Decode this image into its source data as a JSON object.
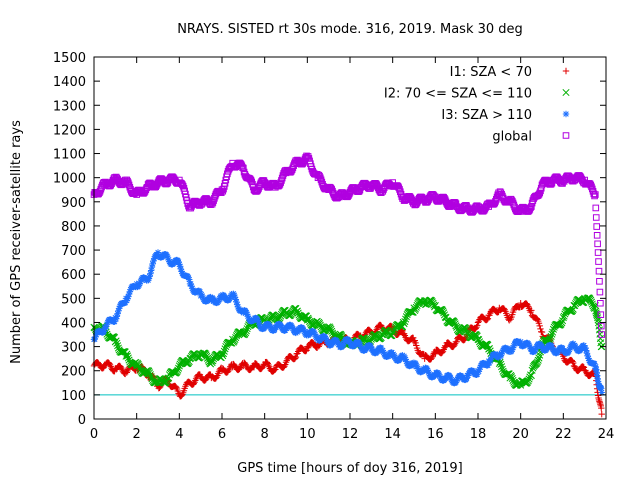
{
  "chart_data": {
    "type": "scatter",
    "title": "NRAYS. SISTED rt 30s mode. 316, 2019. Mask 30 deg",
    "xlabel": "GPS time [hours of doy 316, 2019]",
    "ylabel": "Number of GPS receiver-satellite rays",
    "xlim": [
      0,
      24
    ],
    "ylim": [
      0,
      1500
    ],
    "x_ticks": [
      "0",
      "2",
      "4",
      "6",
      "8",
      "10",
      "12",
      "14",
      "16",
      "18",
      "20",
      "22",
      "24"
    ],
    "y_ticks": [
      "0",
      "100",
      "200",
      "300",
      "400",
      "500",
      "600",
      "700",
      "800",
      "900",
      "1000",
      "1100",
      "1200",
      "1300",
      "1400",
      "1500"
    ],
    "grid": false,
    "legend_position": "top-right",
    "reference_line": {
      "y": 100,
      "color": "#00c0c0"
    },
    "series": [
      {
        "name": "I1: SZA < 70",
        "color": "#e00000",
        "marker": "plus",
        "x": [
          0,
          0.5,
          1,
          1.5,
          2,
          2.5,
          3,
          3.5,
          4,
          4.5,
          5,
          5.5,
          6,
          6.5,
          7,
          7.5,
          8,
          8.5,
          9,
          9.5,
          10,
          10.5,
          11,
          11.5,
          12,
          12.5,
          13,
          13.5,
          14,
          14.5,
          15,
          15.5,
          16,
          16.5,
          17,
          17.5,
          18,
          18.5,
          19,
          19.5,
          20,
          20.5,
          21,
          21.5,
          22,
          22.5,
          23,
          23.5,
          23.8
        ],
        "y": [
          220,
          225,
          210,
          200,
          215,
          190,
          140,
          160,
          100,
          150,
          175,
          170,
          200,
          215,
          220,
          215,
          225,
          205,
          235,
          270,
          300,
          310,
          320,
          325,
          325,
          345,
          360,
          380,
          370,
          350,
          320,
          250,
          270,
          300,
          320,
          350,
          400,
          430,
          460,
          420,
          480,
          450,
          360,
          300,
          260,
          220,
          200,
          180,
          20
        ]
      },
      {
        "name": "I2: 70 <= SZA <= 110",
        "color": "#00b000",
        "marker": "x",
        "x": [
          0,
          0.5,
          1,
          1.5,
          2,
          2.5,
          3,
          3.5,
          4,
          4.5,
          5,
          5.5,
          6,
          6.5,
          7,
          7.5,
          8,
          8.5,
          9,
          9.5,
          10,
          10.5,
          11,
          11.5,
          12,
          12.5,
          13,
          13.5,
          14,
          14.5,
          15,
          15.5,
          16,
          16.5,
          17,
          17.5,
          18,
          18.5,
          19,
          19.5,
          20,
          20.5,
          21,
          21.5,
          22,
          22.5,
          23,
          23.5,
          23.8
        ],
        "y": [
          380,
          370,
          320,
          260,
          220,
          190,
          150,
          170,
          220,
          250,
          270,
          240,
          270,
          330,
          360,
          400,
          410,
          420,
          440,
          445,
          410,
          390,
          370,
          340,
          310,
          320,
          330,
          350,
          360,
          400,
          460,
          490,
          470,
          420,
          380,
          360,
          330,
          290,
          230,
          170,
          140,
          180,
          300,
          360,
          420,
          470,
          500,
          470,
          300
        ]
      },
      {
        "name": "I3: SZA > 110",
        "color": "#1e70ff",
        "marker": "asterisk",
        "x": [
          0,
          0.5,
          1,
          1.5,
          2,
          2.5,
          3,
          3.5,
          4,
          4.5,
          5,
          5.5,
          6,
          6.5,
          7,
          7.5,
          8,
          8.5,
          9,
          9.5,
          10,
          10.5,
          11,
          11.5,
          12,
          12.5,
          13,
          13.5,
          14,
          14.5,
          15,
          15.5,
          16,
          16.5,
          17,
          17.5,
          18,
          18.5,
          19,
          19.5,
          20,
          20.5,
          21,
          21.5,
          22,
          22.5,
          23,
          23.5,
          23.8
        ],
        "y": [
          330,
          380,
          420,
          500,
          560,
          580,
          690,
          660,
          640,
          560,
          510,
          490,
          500,
          510,
          440,
          410,
          380,
          380,
          380,
          370,
          360,
          340,
          320,
          310,
          320,
          300,
          290,
          280,
          260,
          250,
          220,
          200,
          180,
          170,
          160,
          180,
          200,
          240,
          270,
          290,
          320,
          290,
          300,
          290,
          280,
          300,
          290,
          210,
          110
        ]
      },
      {
        "name": "global",
        "color": "#b000e0",
        "marker": "square",
        "x": [
          0,
          0.5,
          1,
          1.5,
          2,
          2.5,
          3,
          3.5,
          4,
          4.5,
          5,
          5.5,
          6,
          6.5,
          7,
          7.5,
          8,
          8.5,
          9,
          9.5,
          10,
          10.5,
          11,
          11.5,
          12,
          12.5,
          13,
          13.5,
          14,
          14.5,
          15,
          15.5,
          16,
          16.5,
          17,
          17.5,
          18,
          18.5,
          19,
          19.5,
          20,
          20.5,
          21,
          21.5,
          22,
          22.5,
          23,
          23.5,
          23.8
        ],
        "y": [
          930,
          970,
          990,
          980,
          930,
          960,
          980,
          990,
          990,
          880,
          900,
          900,
          950,
          1060,
          1040,
          950,
          980,
          960,
          1020,
          1060,
          1080,
          1000,
          950,
          920,
          940,
          960,
          970,
          950,
          980,
          920,
          900,
          910,
          920,
          900,
          880,
          870,
          870,
          880,
          930,
          900,
          860,
          880,
          970,
          990,
          990,
          1000,
          990,
          930,
          350
        ]
      }
    ]
  }
}
